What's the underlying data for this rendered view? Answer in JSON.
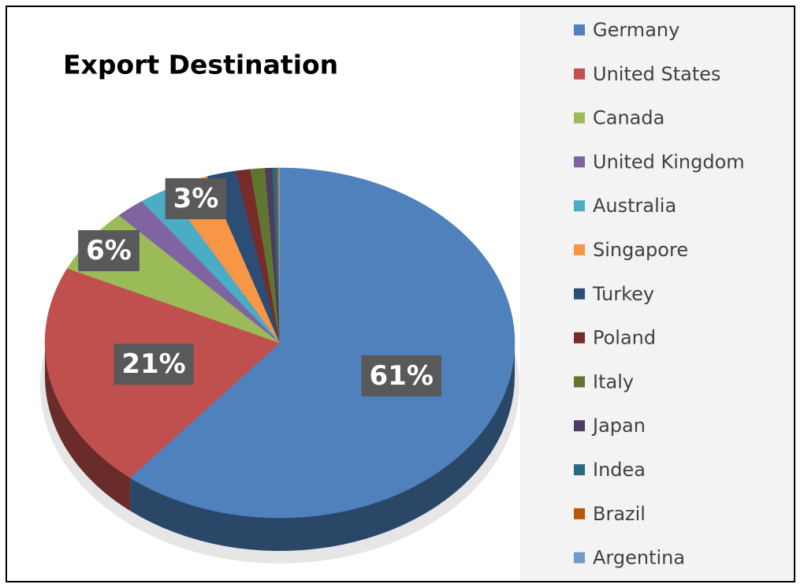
{
  "chart_data": {
    "type": "pie",
    "title": "Export Destination",
    "categories": [
      "Germany",
      "United States",
      "Canada",
      "United Kingdom",
      "Australia",
      "Singapore",
      "Turkey",
      "Poland",
      "Italy",
      "Japan",
      "Indea",
      "Brazil",
      "Argentina"
    ],
    "values": [
      61,
      21,
      6,
      2,
      2,
      3,
      2,
      1,
      1,
      0.5,
      0.3,
      0.1,
      0.1
    ],
    "value_labels": [
      "61%",
      "21%",
      "6%",
      null,
      null,
      "3%",
      null,
      null,
      null,
      null,
      null,
      null,
      null
    ],
    "colors": [
      "#4f81bd",
      "#c0504d",
      "#9bbb59",
      "#8064a2",
      "#4bacc6",
      "#f79646",
      "#2c4d75",
      "#772c2a",
      "#5f7530",
      "#4d3b62",
      "#276a7c",
      "#b65708",
      "#729aca"
    ],
    "legend": "right"
  }
}
